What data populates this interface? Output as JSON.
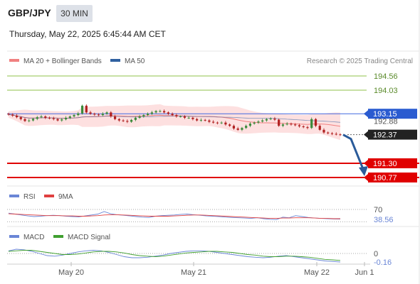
{
  "header": {
    "pair": "GBP/JPY",
    "timeframe": "30 MIN",
    "timestamp": "Thursday, May 22, 2025 6:45:44 AM CET"
  },
  "legend": {
    "ma20": "MA 20 + Bollinger Bands",
    "ma50": "MA 50",
    "credit": "Research © 2025 Trading Central",
    "rsi": "RSI",
    "rsi_ma": "9MA",
    "macd": "MACD",
    "macd_signal": "MACD Signal"
  },
  "colors": {
    "ma20": "#f08080",
    "ma50": "#3060a0",
    "resistance": "#8fc24a",
    "pivot": "#4169e1",
    "support": "#e00000",
    "up_candle": "#3a8a3a",
    "down_candle": "#b02020",
    "forecast_arrow": "#2a5b9a",
    "bollinger": "#fde0e0",
    "rsi": "#6a86d6",
    "rsi_ma": "#e04040",
    "macd": "#6a86d6",
    "macd_signal": "#40a030"
  },
  "chart_data": [
    {
      "type": "candlestick",
      "title": "GBP/JPY",
      "x_ticks": [
        "May 20",
        "May 21",
        "May 22",
        "Jun 1"
      ],
      "levels": [
        {
          "name": "resistance-2",
          "value": 194.56,
          "label": "194.56"
        },
        {
          "name": "resistance-1",
          "value": 194.03,
          "label": "194.03"
        },
        {
          "name": "pivot",
          "value": 193.15,
          "label": "193.15"
        },
        {
          "name": "last-price-ref",
          "value": 192.88,
          "label": "192.88"
        },
        {
          "name": "last-price",
          "value": 192.37,
          "label": "192.37"
        },
        {
          "name": "support-1",
          "value": 191.3,
          "label": "191.30"
        },
        {
          "name": "support-2",
          "value": 190.77,
          "label": "190.77"
        }
      ],
      "close": [
        193.12,
        193.08,
        193.02,
        192.95,
        192.88,
        192.9,
        192.96,
        193.02,
        193.05,
        193.0,
        192.98,
        192.95,
        192.9,
        192.94,
        193.0,
        193.05,
        193.1,
        193.16,
        193.45,
        193.2,
        193.15,
        193.12,
        193.1,
        193.15,
        193.2,
        193.05,
        192.95,
        192.9,
        192.88,
        192.85,
        192.92,
        193.0,
        193.05,
        193.1,
        193.15,
        193.2,
        193.25,
        193.25,
        193.2,
        193.15,
        193.1,
        193.05,
        193.05,
        193.0,
        193.0,
        192.95,
        192.9,
        192.92,
        192.9,
        192.85,
        192.82,
        192.8,
        192.82,
        192.75,
        192.7,
        192.6,
        192.55,
        192.62,
        192.7,
        192.78,
        192.82,
        192.86,
        192.9,
        192.95,
        192.97,
        192.93,
        192.7,
        192.75,
        192.78,
        192.75,
        192.72,
        192.68,
        192.65,
        192.62,
        192.95,
        192.7,
        192.55,
        192.45,
        192.42,
        192.4,
        192.38,
        192.37
      ],
      "xlim": [
        "May 19",
        "Jun 1"
      ]
    },
    {
      "type": "line",
      "title": "RSI",
      "levels": [
        {
          "value": 70,
          "label": "70"
        }
      ],
      "last_value": 38.56,
      "series": [
        {
          "name": "RSI",
          "values": [
            58,
            55,
            52,
            49,
            47,
            48,
            50,
            51,
            50,
            48,
            47,
            46,
            49,
            52,
            55,
            63,
            56,
            53,
            51,
            49,
            47,
            45,
            44,
            48,
            50,
            51,
            52,
            54,
            55,
            53,
            51,
            49,
            48,
            47,
            45,
            44,
            43,
            42,
            41,
            43,
            40,
            38,
            37,
            45,
            43,
            50,
            47,
            44,
            42,
            41,
            40,
            39,
            38.56
          ]
        },
        {
          "name": "9MA",
          "values": [
            56,
            55,
            54,
            53,
            52,
            51,
            50,
            50,
            50,
            49,
            49,
            48,
            48,
            49,
            50,
            52,
            53,
            53,
            52,
            51,
            50,
            49,
            48,
            48,
            48,
            48,
            49,
            50,
            51,
            52,
            52,
            51,
            50,
            49,
            48,
            47,
            46,
            45,
            44,
            43,
            42,
            41,
            41,
            42,
            42,
            43,
            43,
            43,
            42,
            41,
            41,
            40,
            40
          ]
        }
      ]
    },
    {
      "type": "line",
      "title": "MACD",
      "levels": [
        {
          "value": 0,
          "label": "0"
        }
      ],
      "last_value": -0.16,
      "series": [
        {
          "name": "MACD",
          "values": [
            0.05,
            0.08,
            0.07,
            0.04,
            0.0,
            -0.04,
            -0.05,
            -0.03,
            0.0,
            0.03,
            0.05,
            0.06,
            0.05,
            0.02,
            -0.02,
            -0.06,
            -0.08,
            -0.08,
            -0.07,
            -0.05,
            -0.03,
            0.0,
            0.02,
            0.04,
            0.05,
            0.05,
            0.04,
            0.02,
            0.0,
            -0.02,
            -0.04,
            -0.06,
            -0.07,
            -0.08,
            -0.07,
            -0.05,
            -0.04,
            -0.06,
            -0.08,
            -0.1,
            -0.12,
            -0.14,
            -0.15,
            -0.16
          ]
        },
        {
          "name": "MACD Signal",
          "values": [
            0.04,
            0.05,
            0.06,
            0.06,
            0.04,
            0.02,
            0.0,
            -0.02,
            -0.02,
            -0.01,
            0.01,
            0.03,
            0.04,
            0.04,
            0.03,
            0.01,
            -0.02,
            -0.04,
            -0.05,
            -0.06,
            -0.05,
            -0.03,
            -0.01,
            0.01,
            0.02,
            0.03,
            0.04,
            0.04,
            0.03,
            0.02,
            0.0,
            -0.02,
            -0.03,
            -0.05,
            -0.06,
            -0.06,
            -0.05,
            -0.05,
            -0.06,
            -0.07,
            -0.09,
            -0.11,
            -0.12,
            -0.13
          ]
        }
      ]
    }
  ]
}
